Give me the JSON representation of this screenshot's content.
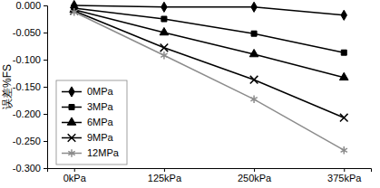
{
  "chart_data": {
    "type": "line",
    "y_label": "误差%FS",
    "categories": [
      "0kPa",
      "125kPa",
      "250kPa",
      "375kPa"
    ],
    "series": [
      {
        "name": "0MPa",
        "color": "#000000",
        "marker": "diamond",
        "values": [
          0.0,
          -0.003,
          -0.003,
          -0.018
        ]
      },
      {
        "name": "3MPa",
        "color": "#000000",
        "marker": "square",
        "values": [
          -0.005,
          -0.025,
          -0.052,
          -0.087
        ]
      },
      {
        "name": "6MPa",
        "color": "#000000",
        "marker": "triangle",
        "values": [
          -0.008,
          -0.05,
          -0.09,
          -0.133
        ]
      },
      {
        "name": "9MPa",
        "color": "#000000",
        "marker": "x",
        "values": [
          -0.01,
          -0.078,
          -0.137,
          -0.207
        ]
      },
      {
        "name": "12MPa",
        "color": "#8c8c8c",
        "marker": "asterisk",
        "values": [
          -0.012,
          -0.092,
          -0.173,
          -0.267
        ]
      }
    ],
    "ylim": [
      -0.3,
      0.0
    ],
    "yticks": [
      {
        "value": 0.0,
        "label": "0.000"
      },
      {
        "value": -0.05,
        "label": "-0.050"
      },
      {
        "value": -0.1,
        "label": "-0.100"
      },
      {
        "value": -0.15,
        "label": "-0.150"
      },
      {
        "value": -0.2,
        "label": "-0.200"
      },
      {
        "value": -0.25,
        "label": "-0.250"
      },
      {
        "value": -0.3,
        "label": "-0.300"
      }
    ],
    "grid": false,
    "legend": "lower-left"
  }
}
